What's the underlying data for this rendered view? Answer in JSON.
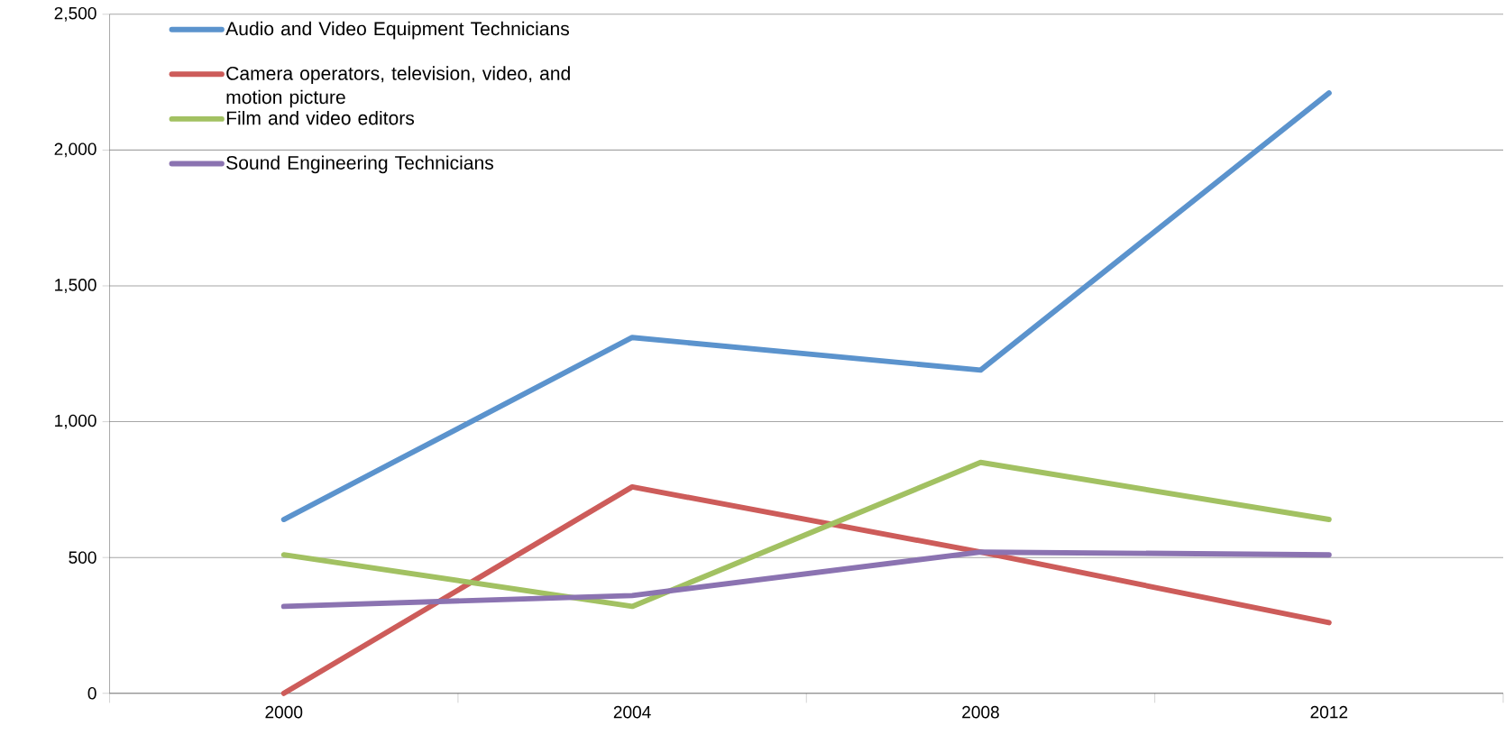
{
  "chart_data": {
    "type": "line",
    "categories": [
      "2000",
      "2004",
      "2008",
      "2012"
    ],
    "series": [
      {
        "name": "Audio and Video Equipment Technicians",
        "color": "#5b93cd",
        "values": [
          640,
          1310,
          1190,
          2210
        ]
      },
      {
        "name": "Camera operators, television, video, and motion picture",
        "color": "#cd5c5a",
        "values": [
          0,
          760,
          520,
          260
        ]
      },
      {
        "name": "Film and video editors",
        "color": "#a2c162",
        "values": [
          510,
          320,
          850,
          640
        ]
      },
      {
        "name": "Sound Engineering Technicians",
        "color": "#8b73b1",
        "values": [
          320,
          360,
          520,
          510
        ]
      }
    ],
    "ylim": [
      0,
      2500
    ],
    "yticks": [
      0,
      500,
      {
        "value": 1000,
        "label": "1,000"
      },
      {
        "value": 1500,
        "label": "1,500"
      },
      {
        "value": 2000,
        "label": "2,000"
      },
      {
        "value": 2500,
        "label": "2,500"
      }
    ],
    "grid": "y",
    "legend": "top left",
    "line_style": "solid"
  }
}
